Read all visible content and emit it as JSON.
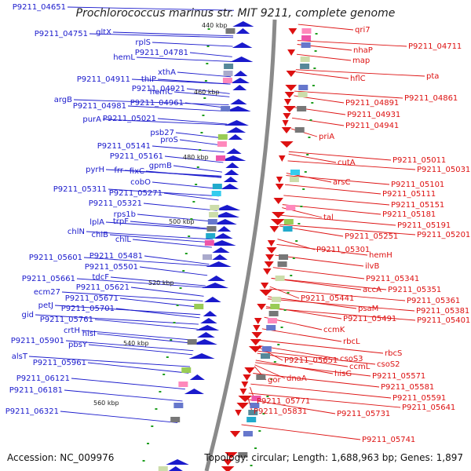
{
  "title": "Prochlorococcus marinus str. MIT 9211, complete genome",
  "footer": {
    "accession": "Accession: NC_009976",
    "summary": "Topology: circular; Length: 1,688,963 bp; Genes: 1,897"
  },
  "colors": {
    "forward_strand": "#1a1acc",
    "reverse_strand": "#dd1111",
    "backbone": "#8a8a8a",
    "tick": "#1e9e1e"
  },
  "scale_labels": [
    "440 kbp",
    "460 kbp",
    "480 kbp",
    "500 kbp",
    "520 kbp",
    "540 kbp",
    "560 kbp"
  ],
  "left_genes": [
    "P9211_04651",
    "P9211_04751",
    "gltX",
    "rplS",
    "hemL",
    "P9211_04781",
    "xthA",
    "P9211_04911",
    "thiP",
    "P9211_04921",
    "hemC",
    "argB",
    "P9211_04981",
    "P9211_04961",
    "purA",
    "P9211_05021",
    "psb27",
    "proS",
    "P9211_05141",
    "P9211_05161",
    "gpmB",
    "pyrH",
    "frr",
    "fixC",
    "cobO",
    "P9211_05311",
    "P9211_05271",
    "P9211_05321",
    "rps1b",
    "lplA",
    "trpF",
    "chlN",
    "chlB",
    "chlL",
    "P9211_05481",
    "P9211_05601",
    "P9211_05501",
    "tdcF",
    "P9211_05661",
    "P9211_05621",
    "ecm27",
    "P9211_05671",
    "petJ",
    "P9211_05701",
    "gid",
    "P9211_05761",
    "crtH",
    "hisI",
    "P9211_05901",
    "pbsY",
    "alsT",
    "P9211_05961",
    "P9211_06121",
    "P9211_06181",
    "P9211_06321"
  ],
  "right_genes": [
    "qri7",
    "P9211_04711",
    "nhaP",
    "map",
    "hflC",
    "pta",
    "P9211_04861",
    "P9211_04891",
    "P9211_04931",
    "P9211_04941",
    "priA",
    "P9211_05011",
    "cutA",
    "P9211_05031",
    "arsC",
    "P9211_05101",
    "P9211_05111",
    "P9211_05151",
    "tal",
    "P9211_05181",
    "P9211_05191",
    "P9211_05201",
    "P9211_05251",
    "P9211_05301",
    "hemH",
    "ilvB",
    "P9211_05341",
    "accA",
    "P9211_05351",
    "P9211_05361",
    "psaM",
    "P9211_05441",
    "P9211_05381",
    "P9211_05491",
    "P9211_05401",
    "ccmK",
    "rbcL",
    "rbcS",
    "csoS3",
    "csoS2",
    "ccmL",
    "P9211_05651",
    "hisG",
    "P9211_05571",
    "P9211_05581",
    "gor",
    "dnaA",
    "P9211_05591",
    "P9211_05771",
    "P9211_05641",
    "P9211_05831",
    "P9211_05731",
    "P9211_05741"
  ]
}
